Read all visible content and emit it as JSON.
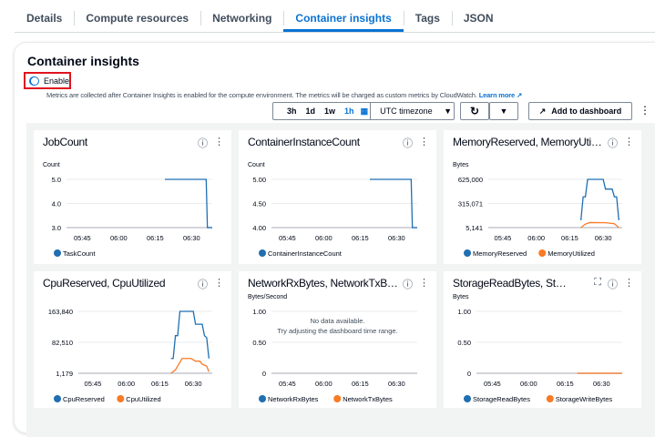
{
  "tabs": [
    {
      "label": "Details"
    },
    {
      "label": "Compute resources"
    },
    {
      "label": "Networking"
    },
    {
      "label": "Container insights",
      "active": true
    },
    {
      "label": "Tags"
    },
    {
      "label": "JSON"
    }
  ],
  "panel": {
    "title": "Container insights",
    "toggle_label": "Enable",
    "toggle_on": true,
    "description": "Metrics are collected after Container Insights is enabled for the compute environment. The metrics will be charged as custom metrics by CloudWatch.",
    "learn_more": "Learn more"
  },
  "controls": {
    "ranges": [
      "3h",
      "1d",
      "1w",
      "1h"
    ],
    "selected_range": "1h",
    "timezone": "UTC timezone",
    "add_to_dashboard": "Add to dashboard"
  },
  "colors": {
    "blue": "#1f6fb2",
    "orange": "#fa7a25",
    "accent": "#0972d3",
    "highlight": "#e0141e"
  },
  "chart_data": [
    {
      "type": "line",
      "title": "JobCount",
      "ylabel": "Count",
      "yticks": [
        "3.0",
        "4.0",
        "5.0"
      ],
      "ylim": [
        3,
        5
      ],
      "xlim": [
        "05:38:30",
        "06:38:30"
      ],
      "xticks": [
        "05:45",
        "06:00",
        "06:15",
        "06:30"
      ],
      "series": [
        {
          "name": "TaskCount",
          "color": "#1f6fb2",
          "points": [
            [
              "06:19",
              5
            ],
            [
              "06:36",
              5
            ],
            [
              "06:36:30",
              3
            ],
            [
              "06:38:30",
              3
            ]
          ]
        }
      ]
    },
    {
      "type": "line",
      "title": "ContainerInstanceCount",
      "ylabel": "Count",
      "yticks": [
        "4.00",
        "4.50",
        "5.00"
      ],
      "ylim": [
        4,
        5
      ],
      "xlim": [
        "05:38:30",
        "06:38:30"
      ],
      "xticks": [
        "05:45",
        "06:00",
        "06:15",
        "06:30"
      ],
      "series": [
        {
          "name": "ContainerInstanceCount",
          "color": "#1f6fb2",
          "points": [
            [
              "06:19",
              5
            ],
            [
              "06:36",
              5
            ],
            [
              "06:36:30",
              4
            ],
            [
              "06:38:30",
              4
            ]
          ]
        }
      ]
    },
    {
      "type": "line",
      "title": "MemoryReserved, MemoryUti…",
      "ylabel": "Bytes",
      "yticks": [
        "5,141",
        "315,071",
        "625,000"
      ],
      "ylim": [
        5141,
        625000
      ],
      "xlim": [
        "05:38:30",
        "06:38:30"
      ],
      "xticks": [
        "05:45",
        "06:00",
        "06:15",
        "06:30"
      ],
      "series": [
        {
          "name": "MemoryReserved",
          "color": "#1f6fb2",
          "points": [
            [
              "06:20",
              100000
            ],
            [
              "06:21",
              400000
            ],
            [
              "06:22",
              400000
            ],
            [
              "06:23",
              625000
            ],
            [
              "06:30",
              625000
            ],
            [
              "06:31",
              500000
            ],
            [
              "06:34",
              500000
            ],
            [
              "06:35",
              400000
            ],
            [
              "06:36",
              400000
            ],
            [
              "06:37",
              100000
            ]
          ]
        },
        {
          "name": "MemoryUtilized",
          "color": "#fa7a25",
          "points": [
            [
              "06:20",
              5141
            ],
            [
              "06:22",
              50000
            ],
            [
              "06:24",
              70000
            ],
            [
              "06:31",
              68000
            ],
            [
              "06:35",
              55000
            ],
            [
              "06:37",
              5141
            ]
          ]
        }
      ]
    },
    {
      "type": "line",
      "title": "CpuReserved, CpuUtilized",
      "ylabel": "",
      "yticks": [
        "1,179",
        "82,510",
        "163,840"
      ],
      "ylim": [
        1179,
        163840
      ],
      "xlim": [
        "05:38:30",
        "06:38:30"
      ],
      "xticks": [
        "05:45",
        "06:00",
        "06:15",
        "06:30"
      ],
      "series": [
        {
          "name": "CpuReserved",
          "color": "#1f6fb2",
          "points": [
            [
              "06:20",
              40000
            ],
            [
              "06:21",
              40000
            ],
            [
              "06:22",
              100000
            ],
            [
              "06:23",
              100000
            ],
            [
              "06:24",
              163840
            ],
            [
              "06:30",
              163840
            ],
            [
              "06:31",
              130000
            ],
            [
              "06:34",
              130000
            ],
            [
              "06:35",
              100000
            ],
            [
              "06:36",
              95000
            ],
            [
              "06:37",
              40000
            ]
          ]
        },
        {
          "name": "CpuUtilized",
          "color": "#fa7a25",
          "points": [
            [
              "06:20",
              1179
            ],
            [
              "06:22",
              10000
            ],
            [
              "06:24",
              30000
            ],
            [
              "06:25",
              40000
            ],
            [
              "06:29",
              40000
            ],
            [
              "06:31",
              33000
            ],
            [
              "06:33",
              33000
            ],
            [
              "06:34",
              25000
            ],
            [
              "06:36",
              20000
            ],
            [
              "06:37",
              5000
            ]
          ]
        }
      ]
    },
    {
      "type": "line",
      "title": "NetworkRxBytes, NetworkTxB…",
      "ylabel": "Bytes/Second",
      "yticks": [
        "0",
        "0.50",
        "1.00"
      ],
      "ylim": [
        0,
        1
      ],
      "xlim": [
        "05:38:30",
        "06:38:30"
      ],
      "xticks": [
        "05:45",
        "06:00",
        "06:15",
        "06:30"
      ],
      "no_data": [
        "No data available.",
        "Try adjusting the dashboard time range."
      ],
      "series": [
        {
          "name": "NetworkRxBytes",
          "color": "#1f6fb2",
          "points": []
        },
        {
          "name": "NetworkTxBytes",
          "color": "#fa7a25",
          "points": []
        }
      ]
    },
    {
      "type": "line",
      "title": "StorageReadBytes, St…",
      "ylabel": "Bytes",
      "yticks": [
        "0",
        "0.50",
        "1.00"
      ],
      "ylim": [
        0,
        1
      ],
      "xlim": [
        "05:38:30",
        "06:38:30"
      ],
      "xticks": [
        "05:45",
        "06:00",
        "06:15",
        "06:30"
      ],
      "expand_icon": true,
      "series": [
        {
          "name": "StorageReadBytes",
          "color": "#1f6fb2",
          "points": []
        },
        {
          "name": "StorageWriteBytes",
          "color": "#fa7a25",
          "points": [
            [
              "06:20",
              0
            ],
            [
              "06:38:30",
              0
            ]
          ]
        }
      ]
    }
  ]
}
